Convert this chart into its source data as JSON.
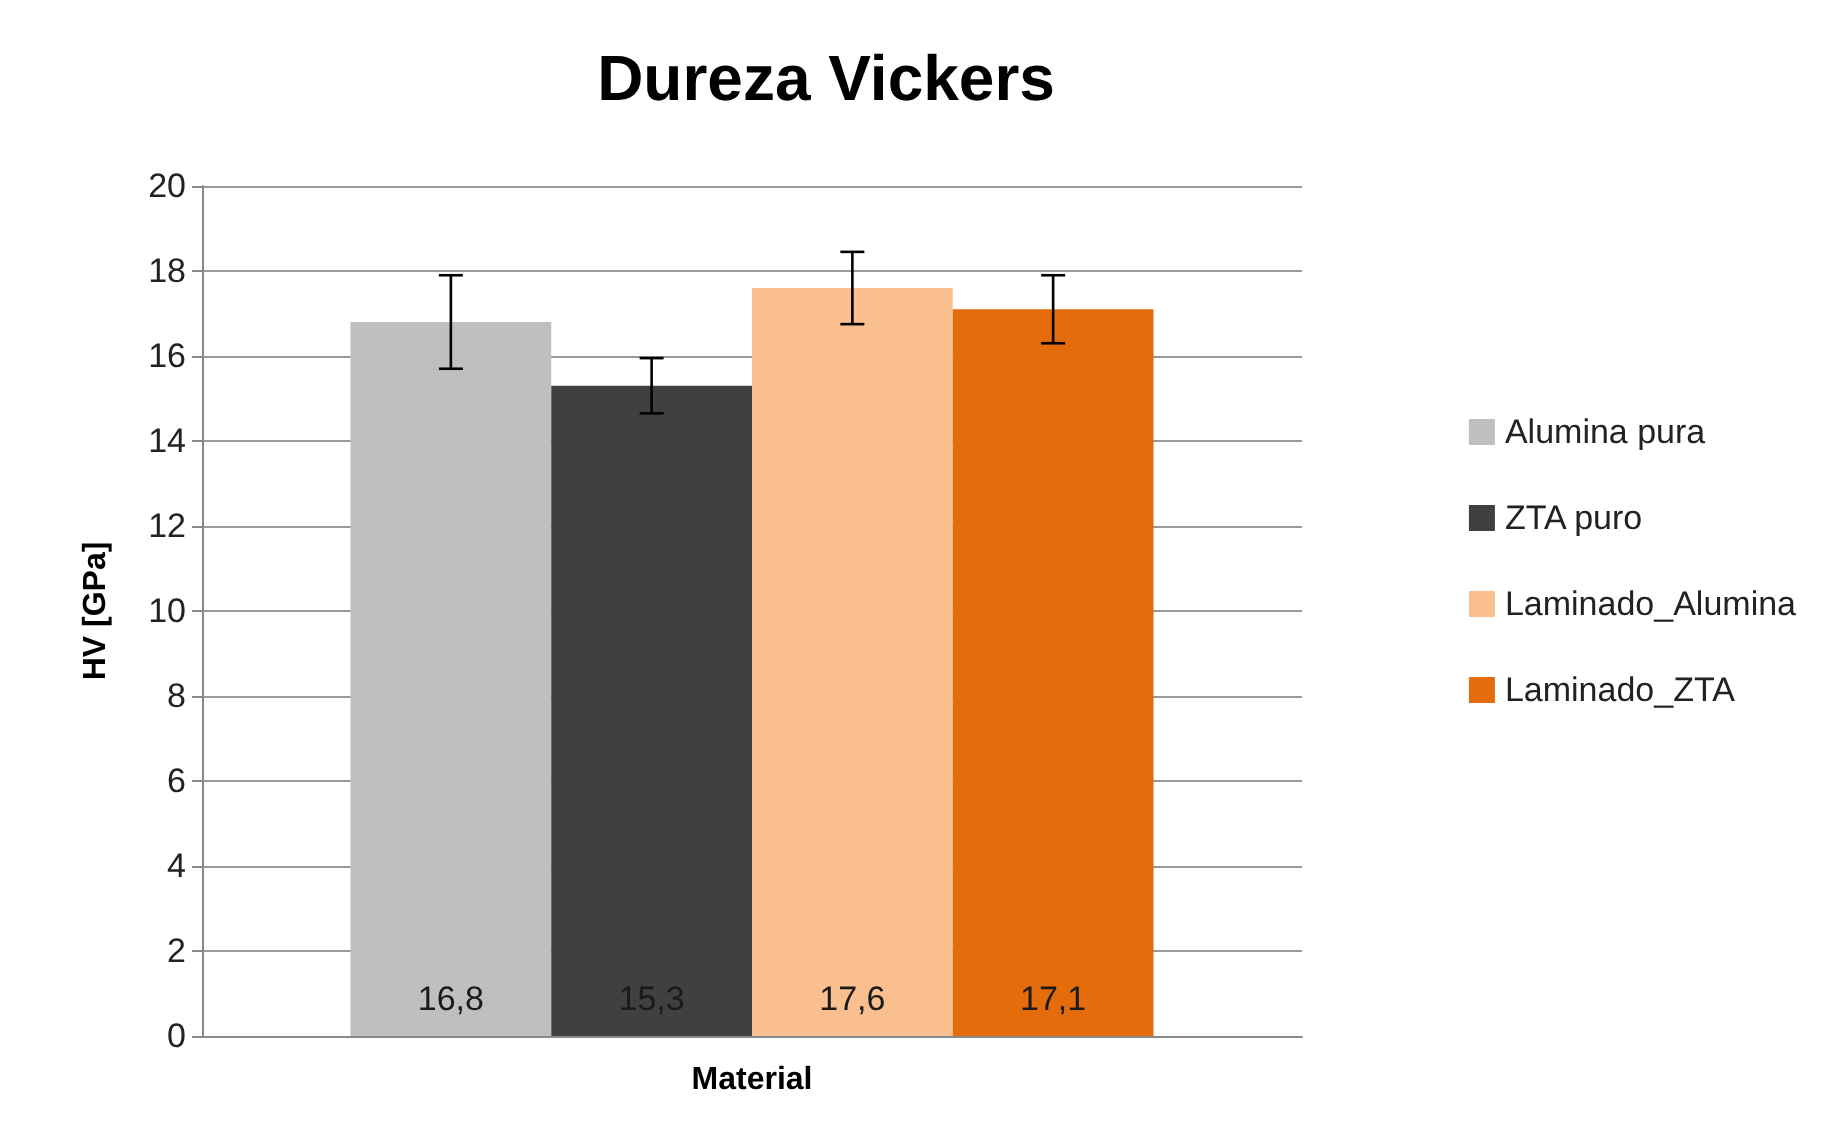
{
  "chart_data": {
    "type": "bar",
    "title": "Dureza Vickers",
    "xlabel": "Material",
    "ylabel": "HV [GPa]",
    "categories": [
      null
    ],
    "series": [
      {
        "name": "Alumina pura",
        "color": "#bfbfbf",
        "values": [
          16.8
        ],
        "errors": [
          1.1
        ],
        "value_labels": [
          "16,8"
        ]
      },
      {
        "name": "ZTA puro",
        "color": "#404040",
        "values": [
          15.3
        ],
        "errors": [
          0.65
        ],
        "value_labels": [
          "15,3"
        ]
      },
      {
        "name": "Laminado_Alumina",
        "color": "#f9bf8f",
        "values": [
          17.6
        ],
        "errors": [
          0.85
        ],
        "value_labels": [
          "17,6"
        ]
      },
      {
        "name": "Laminado_ZTA",
        "color": "#e46c0a",
        "values": [
          17.1
        ],
        "errors": [
          0.8
        ],
        "value_labels": [
          "17,1"
        ]
      }
    ],
    "ylim": [
      0,
      20
    ],
    "yticks": [
      0,
      2,
      4,
      6,
      8,
      10,
      12,
      14,
      16,
      18,
      20
    ],
    "grid": "y",
    "legend": "right"
  }
}
